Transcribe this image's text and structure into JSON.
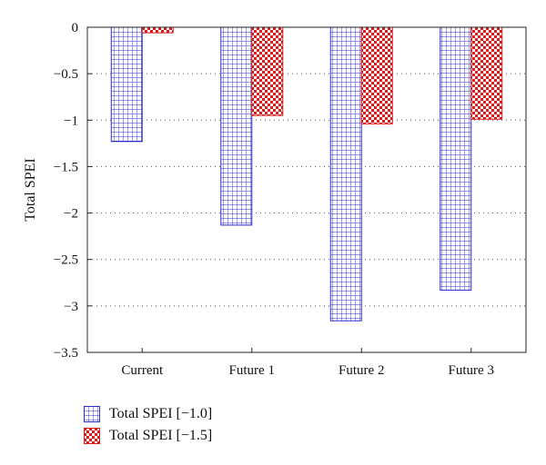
{
  "chart_data": {
    "type": "bar",
    "title": "",
    "xlabel": "",
    "ylabel": "Total SPEI",
    "categories": [
      "Current",
      "Future 1",
      "Future 2",
      "Future 3"
    ],
    "series": [
      {
        "name": "Total SPEI [−1.0]",
        "values": [
          -1.23,
          -2.13,
          -3.16,
          -2.83
        ],
        "color": "#2b2bd0",
        "pattern": "grid"
      },
      {
        "name": "Total SPEI [−1.5]",
        "values": [
          -0.06,
          -0.95,
          -1.04,
          -0.99
        ],
        "color": "#e01818",
        "pattern": "checker"
      }
    ],
    "ylim": [
      -3.5,
      0
    ],
    "yticks": [
      0,
      -0.5,
      -1,
      -1.5,
      -2,
      -2.5,
      -3,
      -3.5
    ],
    "ytick_labels": [
      "0",
      "−0.5",
      "−1",
      "−1.5",
      "−2",
      "−2.5",
      "−3",
      "−3.5"
    ],
    "grid": "horizontal dotted",
    "legend_position": "bottom-left"
  }
}
